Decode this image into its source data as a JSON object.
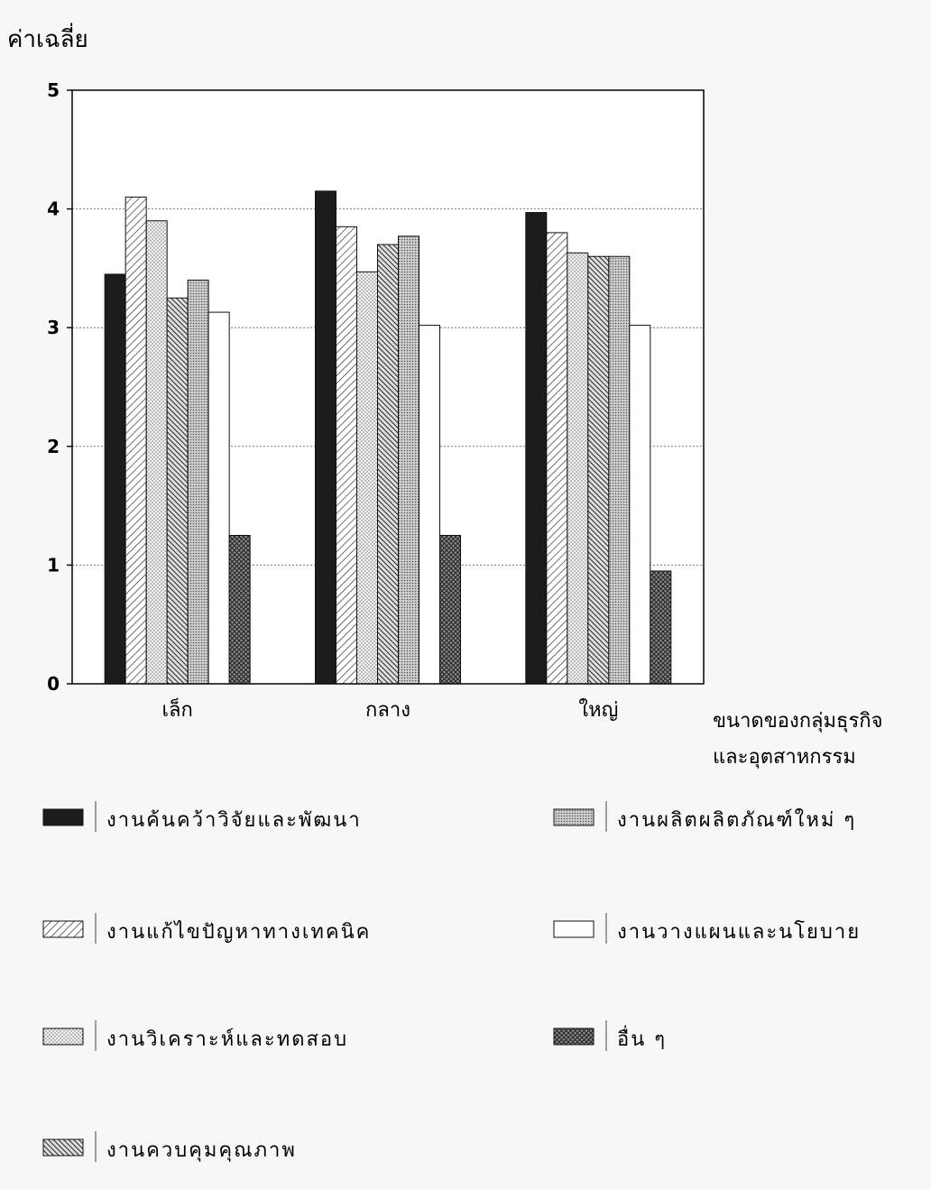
{
  "chart_data": {
    "type": "bar",
    "title": "",
    "ylabel": "ค่าเฉลี่ย",
    "xlabel_lines": [
      "ขนาดของกลุ่มธุรกิจ",
      "และอุตสาหกรรม"
    ],
    "categories": [
      "เล็ก",
      "กลาง",
      "ใหญ่"
    ],
    "ylim": [
      0,
      5
    ],
    "yticks": [
      "0",
      "1",
      "2",
      "3",
      "4",
      "5"
    ],
    "grid": true,
    "legend_position": "bottom",
    "series": [
      {
        "name": "งานค้นคว้าวิจัยและพัฒนา",
        "values": [
          3.45,
          4.15,
          3.97
        ],
        "pattern": "solid-dark"
      },
      {
        "name": "งานแก้ไขปัญหาทางเทคนิค",
        "values": [
          4.1,
          3.85,
          3.8
        ],
        "pattern": "diag-light"
      },
      {
        "name": "งานวิเคราะห์และทดสอบ",
        "values": [
          3.9,
          3.47,
          3.63
        ],
        "pattern": "dots-light"
      },
      {
        "name": "งานควบคุมคุณภาพ",
        "values": [
          3.25,
          3.7,
          3.6
        ],
        "pattern": "diag-dense"
      },
      {
        "name": "งานผลิตผลิตภัณฑ์ใหม่ ๆ",
        "values": [
          3.4,
          3.77,
          3.6
        ],
        "pattern": "dots-gray"
      },
      {
        "name": "งานวางแผนและนโยบาย",
        "values": [
          3.13,
          3.02,
          3.02
        ],
        "pattern": "white"
      },
      {
        "name": "อื่น ๆ",
        "values": [
          1.25,
          1.25,
          0.95
        ],
        "pattern": "crosshatch"
      }
    ]
  }
}
